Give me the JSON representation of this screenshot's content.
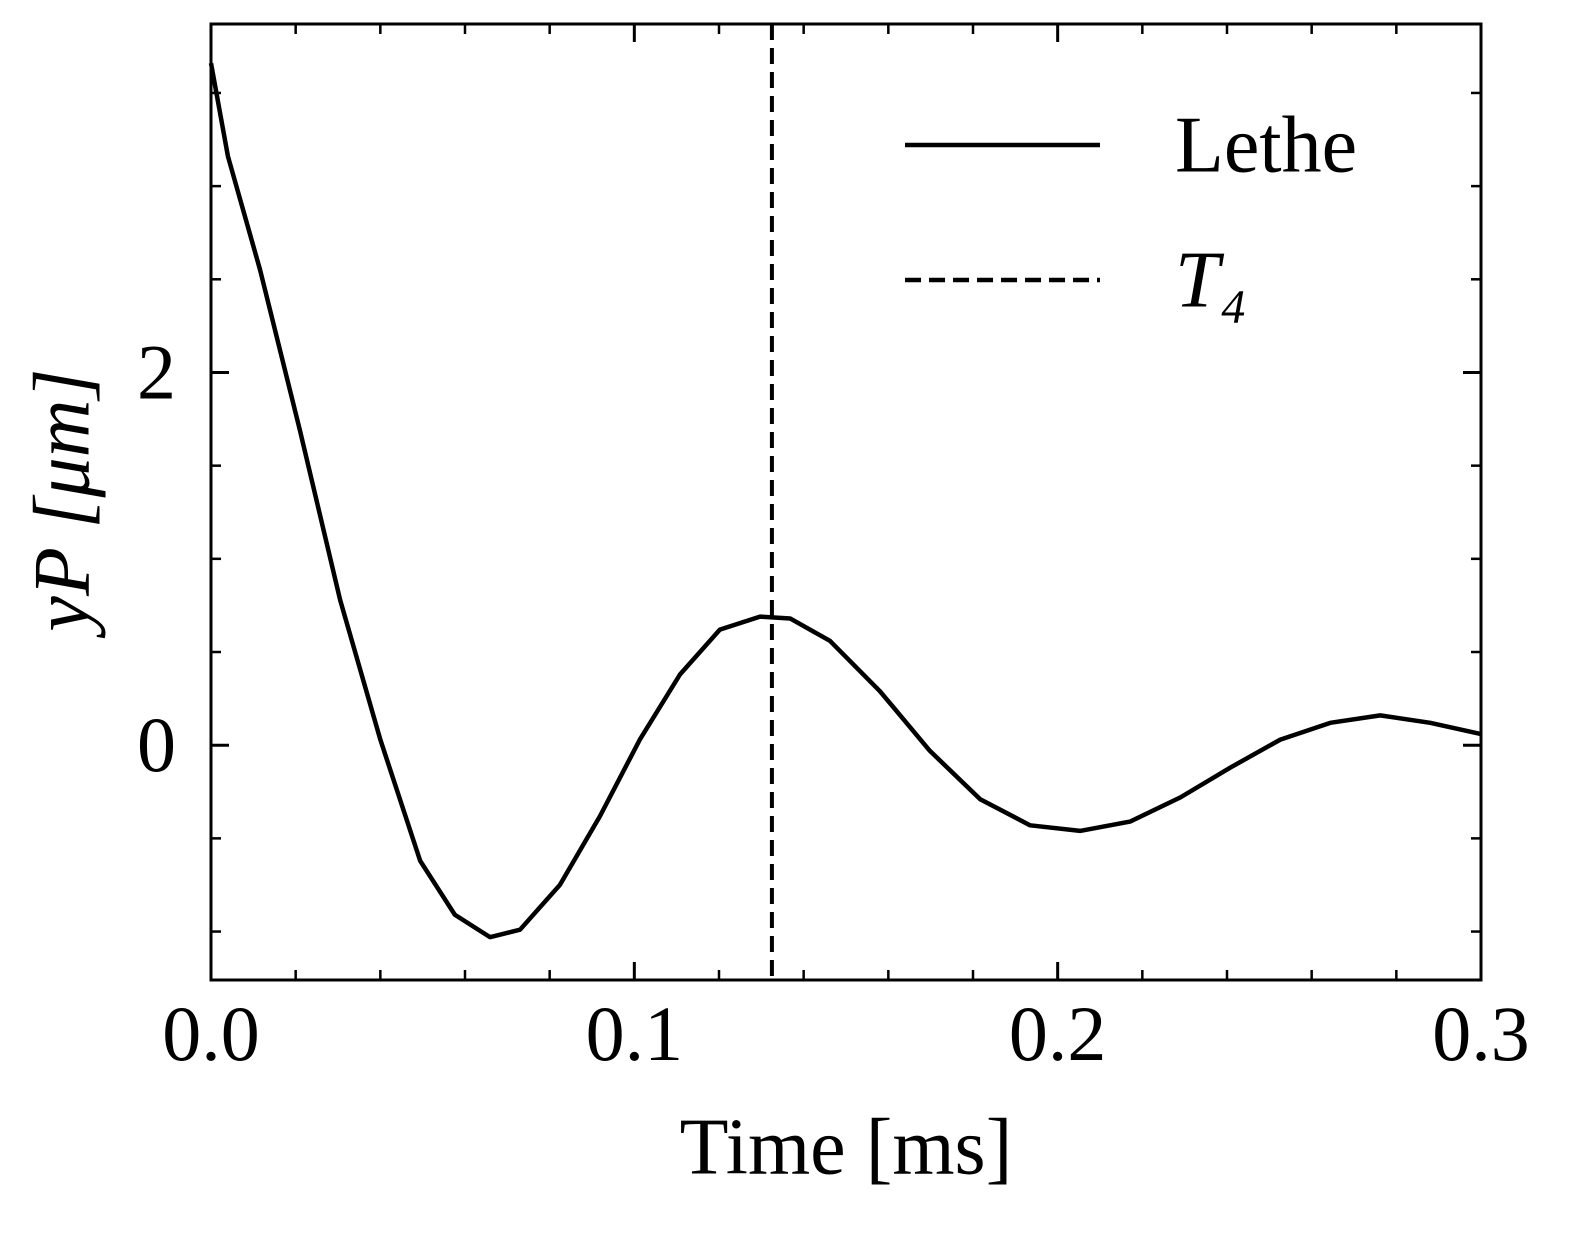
{
  "chart_data": {
    "type": "line",
    "xlabel": "Time [ms]",
    "ylabel": "yP [μm]",
    "x": [
      0,
      0.004,
      0.0116,
      0.021,
      0.0305,
      0.04,
      0.0494,
      0.0576,
      0.0659,
      0.073,
      0.0824,
      0.0919,
      0.1013,
      0.1108,
      0.1202,
      0.1297,
      0.1368,
      0.1462,
      0.158,
      0.1698,
      0.1817,
      0.1935,
      0.2053,
      0.2171,
      0.229,
      0.2408,
      0.2526,
      0.2644,
      0.2762,
      0.288,
      0.3
    ],
    "series": [
      {
        "name": "Lethe",
        "color": "#000000",
        "values": [
          3.66,
          3.16,
          2.55,
          1.69,
          0.78,
          0.03,
          -0.62,
          -0.91,
          -1.03,
          -0.99,
          -0.75,
          -0.38,
          0.03,
          0.38,
          0.62,
          0.69,
          0.68,
          0.56,
          0.29,
          -0.03,
          -0.29,
          -0.43,
          -0.46,
          -0.41,
          -0.28,
          -0.12,
          0.03,
          0.12,
          0.16,
          0.12,
          0.06
        ]
      }
    ],
    "vlines": [
      {
        "name": "T₄",
        "x": 0.1325,
        "color": "#000000",
        "dashed": true
      }
    ],
    "xlim": [
      0,
      0.3
    ],
    "ylim": [
      -1.26,
      3.87
    ],
    "xticks": [
      {
        "value": 0,
        "label": "0.0"
      },
      0.1,
      0.2,
      0.3
    ],
    "yticks": [
      0,
      2
    ],
    "xminorticks": [
      0.02,
      0.04,
      0.06,
      0.08,
      0.12,
      0.14,
      0.16,
      0.18,
      0.22,
      0.24,
      0.26,
      0.28
    ],
    "yminorticks": [
      -1,
      -0.5,
      0.5,
      1,
      1.5,
      2.5,
      3,
      3.5
    ],
    "legend": "upper right",
    "grid": false
  }
}
